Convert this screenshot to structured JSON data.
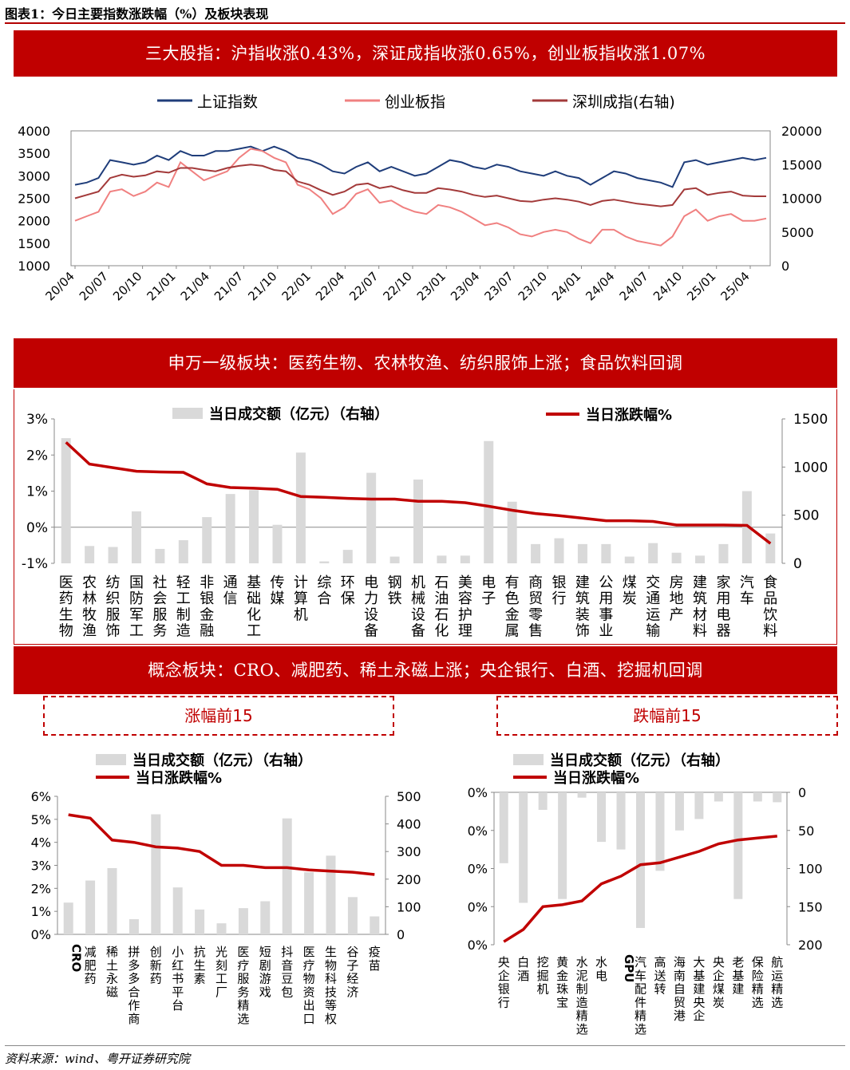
{
  "figure_title": "图表1：今日主要指数涨跌幅（%）及板块表现",
  "banner1": "三大股指：沪指收涨0.43%，深证成指收涨0.65%，创业板指收涨1.07%",
  "banner2": "申万一级板块：医药生物、农林牧渔、纺织服饰上涨；食品饮料回调",
  "banner3": "概念板块：CRO、减肥药、稀土永磁上涨；央企银行、白酒、挖掘机回调",
  "box_up": "涨幅前15",
  "box_down": "跌幅前15",
  "source": "资料来源：wind、粤开证券研究院",
  "colors": {
    "red_banner": "#c00000",
    "sh": "#1f3d7a",
    "cy": "#f08080",
    "sz": "#a33a3a",
    "line": "#c00000",
    "bar": "#d9d9d9"
  },
  "chart_data": [
    {
      "id": "index",
      "type": "line",
      "legend": [
        "上证指数",
        "创业板指",
        "深圳成指(右轴)"
      ],
      "x_ticks": [
        "20/04",
        "20/07",
        "20/10",
        "21/01",
        "21/04",
        "21/07",
        "21/10",
        "22/01",
        "22/04",
        "22/07",
        "22/10",
        "23/01",
        "23/04",
        "23/07",
        "23/10",
        "24/01",
        "24/04",
        "24/07",
        "24/10",
        "25/01",
        "25/04"
      ],
      "ylim_left": [
        1000,
        4000
      ],
      "yticks_left": [
        1000,
        1500,
        2000,
        2500,
        3000,
        3500,
        4000
      ],
      "ylim_right": [
        0,
        20000
      ],
      "yticks_right": [
        0,
        5000,
        10000,
        15000,
        20000
      ],
      "series": [
        {
          "name": "上证指数",
          "axis": "left",
          "values": [
            2800,
            2850,
            2950,
            3350,
            3300,
            3250,
            3300,
            3450,
            3350,
            3550,
            3450,
            3450,
            3550,
            3550,
            3600,
            3650,
            3550,
            3650,
            3550,
            3400,
            3350,
            3250,
            3100,
            3050,
            3200,
            3300,
            3100,
            3200,
            3100,
            3000,
            3050,
            3200,
            3350,
            3300,
            3200,
            3150,
            3250,
            3200,
            3100,
            3050,
            3000,
            3100,
            3000,
            2950,
            2800,
            2950,
            3100,
            3050,
            2950,
            2900,
            2850,
            2750,
            3300,
            3350,
            3250,
            3300,
            3350,
            3400,
            3350,
            3400
          ]
        },
        {
          "name": "创业板指",
          "axis": "left",
          "values": [
            2000,
            2100,
            2200,
            2650,
            2700,
            2550,
            2650,
            2850,
            2750,
            3300,
            3100,
            2900,
            3000,
            3100,
            3400,
            3600,
            3550,
            3400,
            3300,
            2800,
            2700,
            2500,
            2150,
            2300,
            2600,
            2700,
            2400,
            2450,
            2300,
            2200,
            2150,
            2350,
            2300,
            2200,
            2050,
            1900,
            1950,
            1850,
            1700,
            1650,
            1750,
            1800,
            1750,
            1600,
            1500,
            1800,
            1800,
            1650,
            1550,
            1500,
            1450,
            1650,
            2100,
            2250,
            2000,
            2100,
            2150,
            2000,
            2000,
            2050
          ]
        },
        {
          "name": "深圳成指(右轴)",
          "axis": "right",
          "values": [
            10000,
            10500,
            11000,
            13000,
            13500,
            13200,
            13400,
            14000,
            13800,
            14500,
            14500,
            14200,
            14000,
            14500,
            14800,
            15000,
            14800,
            14200,
            14000,
            12500,
            12000,
            11200,
            10500,
            11000,
            12000,
            12200,
            11500,
            11800,
            11200,
            10800,
            10800,
            11500,
            11300,
            11000,
            10500,
            10200,
            10400,
            10000,
            9600,
            9500,
            9800,
            10000,
            9800,
            9500,
            9000,
            9600,
            9800,
            9500,
            9200,
            9000,
            8800,
            9000,
            11300,
            11500,
            10500,
            10800,
            11000,
            10400,
            10300,
            10300
          ]
        }
      ]
    },
    {
      "id": "sw",
      "type": "bar+line",
      "legend_bar": "当日成交额（亿元）（右轴）",
      "legend_line": "当日涨跌幅%",
      "ylim_left": [
        -1,
        3
      ],
      "yticks_left": [
        "3%",
        "2%",
        "1%",
        "0%",
        "-1%"
      ],
      "ylim_right": [
        0,
        1500
      ],
      "yticks_right": [
        "1500",
        "1000",
        "500",
        "0"
      ],
      "categories": [
        "医药生物",
        "农林牧渔",
        "纺织服饰",
        "国防军工",
        "社会服务",
        "轻工制造",
        "非银金融",
        "通信",
        "基础化工",
        "传媒",
        "计算机",
        "综合",
        "环保",
        "电力设备",
        "钢铁",
        "机械设备",
        "石油石化",
        "美容护理",
        "电子",
        "有色金属",
        "商贸零售",
        "银行",
        "建筑装饰",
        "公用事业",
        "煤炭",
        "交通运输",
        "房地产",
        "建筑材料",
        "家用电器",
        "汽车",
        "食品饮料"
      ],
      "turnover": [
        1300,
        180,
        170,
        540,
        150,
        240,
        480,
        720,
        760,
        400,
        1150,
        20,
        140,
        940,
        70,
        870,
        80,
        80,
        1270,
        640,
        200,
        260,
        200,
        200,
        70,
        210,
        110,
        80,
        200,
        750,
        310
      ],
      "change": [
        2.35,
        1.75,
        1.65,
        1.55,
        1.53,
        1.52,
        1.2,
        1.1,
        1.08,
        1.05,
        0.85,
        0.83,
        0.8,
        0.78,
        0.78,
        0.72,
        0.72,
        0.68,
        0.58,
        0.47,
        0.38,
        0.32,
        0.25,
        0.18,
        0.18,
        0.16,
        0.06,
        0.06,
        0.06,
        0.05,
        -0.45
      ]
    },
    {
      "id": "up15",
      "type": "bar+line",
      "legend_bar": "当日成交额（亿元）（右轴）",
      "legend_line": "当日涨跌幅%",
      "ylim_left": [
        0,
        6
      ],
      "yticks_left": [
        "6%",
        "5%",
        "4%",
        "3%",
        "2%",
        "1%",
        "0%"
      ],
      "ylim_right": [
        0,
        500
      ],
      "yticks_right": [
        "500",
        "400",
        "300",
        "200",
        "100",
        "0"
      ],
      "categories": [
        "CRO",
        "减肥药",
        "稀土永磁",
        "拼多多合作商",
        "创新药",
        "小红书平台",
        "抗生素",
        "光刻工厂",
        "医疗服务精选",
        "短剧游戏",
        "抖音豆包",
        "医疗物资出口",
        "生物科技等权",
        "谷子经济",
        "疫苗"
      ],
      "turnover": [
        115,
        195,
        240,
        55,
        435,
        170,
        90,
        40,
        95,
        120,
        420,
        225,
        285,
        135,
        65
      ],
      "change": [
        5.2,
        5.05,
        4.1,
        4.0,
        3.8,
        3.75,
        3.6,
        3.0,
        3.0,
        2.9,
        2.9,
        2.8,
        2.75,
        2.7,
        2.6
      ]
    },
    {
      "id": "down15",
      "type": "bar+line",
      "legend_bar": "当日成交额（亿元）（右轴）",
      "legend_line": "当日涨跌幅%",
      "ylim_left": [
        -4,
        0
      ],
      "yticks_left": [
        "0%",
        "0%",
        "0%",
        "0%",
        "0%"
      ],
      "ylim_right": [
        200,
        0
      ],
      "yticks_right": [
        "0",
        "50",
        "100",
        "150",
        "200"
      ],
      "categories": [
        "央企银行",
        "白酒",
        "挖掘机",
        "黄金珠宝",
        "水泥制造精选",
        "水电",
        "GPU",
        "汽车配件精选",
        "高送转",
        "海南自贸港",
        "大基建央企",
        "央企煤炭",
        "老基建",
        "保险精选",
        "航运精选"
      ],
      "turnover": [
        93,
        145,
        23,
        140,
        7,
        65,
        75,
        178,
        103,
        50,
        35,
        12,
        140,
        12,
        13
      ],
      "change": [
        -3.92,
        -3.6,
        -3.0,
        -2.95,
        -2.85,
        -2.4,
        -2.2,
        -1.9,
        -1.85,
        -1.7,
        -1.55,
        -1.35,
        -1.25,
        -1.2,
        -1.15
      ]
    }
  ]
}
